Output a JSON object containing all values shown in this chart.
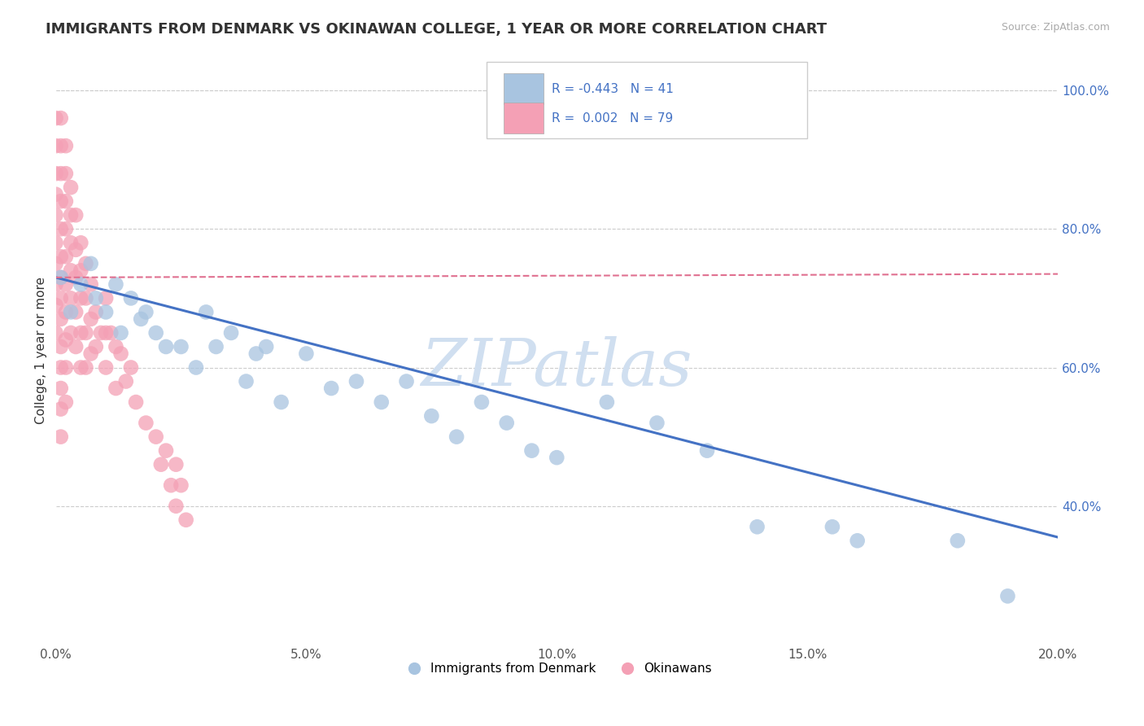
{
  "title": "IMMIGRANTS FROM DENMARK VS OKINAWAN COLLEGE, 1 YEAR OR MORE CORRELATION CHART",
  "source_text": "Source: ZipAtlas.com",
  "ylabel": "College, 1 year or more",
  "xlim": [
    0.0,
    0.2
  ],
  "ylim": [
    0.2,
    1.05
  ],
  "xticks": [
    0.0,
    0.05,
    0.1,
    0.15,
    0.2
  ],
  "xtick_labels": [
    "0.0%",
    "5.0%",
    "10.0%",
    "15.0%",
    "20.0%"
  ],
  "yticks": [
    0.4,
    0.6,
    0.8,
    1.0
  ],
  "ytick_labels": [
    "40.0%",
    "60.0%",
    "80.0%",
    "100.0%"
  ],
  "blue_color": "#a8c4e0",
  "pink_color": "#f4a0b5",
  "blue_line_color": "#4472c4",
  "pink_line_color": "#e07090",
  "watermark": "ZIPatlas",
  "watermark_color": "#d0dff0",
  "title_fontsize": 13,
  "axis_label_fontsize": 11,
  "tick_fontsize": 11,
  "blue_scatter_x": [
    0.001,
    0.003,
    0.005,
    0.007,
    0.008,
    0.01,
    0.012,
    0.013,
    0.015,
    0.017,
    0.018,
    0.02,
    0.022,
    0.025,
    0.028,
    0.03,
    0.032,
    0.035,
    0.038,
    0.04,
    0.042,
    0.045,
    0.05,
    0.055,
    0.06,
    0.065,
    0.07,
    0.075,
    0.08,
    0.085,
    0.09,
    0.095,
    0.1,
    0.11,
    0.12,
    0.13,
    0.14,
    0.155,
    0.16,
    0.18,
    0.19
  ],
  "blue_scatter_y": [
    0.73,
    0.68,
    0.72,
    0.75,
    0.7,
    0.68,
    0.72,
    0.65,
    0.7,
    0.67,
    0.68,
    0.65,
    0.63,
    0.63,
    0.6,
    0.68,
    0.63,
    0.65,
    0.58,
    0.62,
    0.63,
    0.55,
    0.62,
    0.57,
    0.58,
    0.55,
    0.58,
    0.53,
    0.5,
    0.55,
    0.52,
    0.48,
    0.47,
    0.55,
    0.52,
    0.48,
    0.37,
    0.37,
    0.35,
    0.35,
    0.27
  ],
  "pink_scatter_x": [
    0.0,
    0.0,
    0.0,
    0.0,
    0.0,
    0.0,
    0.0,
    0.0,
    0.0,
    0.0,
    0.001,
    0.001,
    0.001,
    0.001,
    0.001,
    0.001,
    0.001,
    0.001,
    0.001,
    0.001,
    0.001,
    0.001,
    0.001,
    0.001,
    0.002,
    0.002,
    0.002,
    0.002,
    0.002,
    0.002,
    0.002,
    0.002,
    0.002,
    0.002,
    0.003,
    0.003,
    0.003,
    0.003,
    0.003,
    0.003,
    0.004,
    0.004,
    0.004,
    0.004,
    0.004,
    0.005,
    0.005,
    0.005,
    0.005,
    0.005,
    0.006,
    0.006,
    0.006,
    0.006,
    0.007,
    0.007,
    0.007,
    0.008,
    0.008,
    0.009,
    0.01,
    0.01,
    0.01,
    0.011,
    0.012,
    0.012,
    0.013,
    0.014,
    0.015,
    0.016,
    0.018,
    0.02,
    0.021,
    0.022,
    0.023,
    0.024,
    0.024,
    0.025,
    0.026
  ],
  "pink_scatter_y": [
    0.96,
    0.92,
    0.88,
    0.85,
    0.82,
    0.78,
    0.75,
    0.72,
    0.69,
    0.65,
    0.96,
    0.92,
    0.88,
    0.84,
    0.8,
    0.76,
    0.73,
    0.7,
    0.67,
    0.63,
    0.6,
    0.57,
    0.54,
    0.5,
    0.92,
    0.88,
    0.84,
    0.8,
    0.76,
    0.72,
    0.68,
    0.64,
    0.6,
    0.55,
    0.86,
    0.82,
    0.78,
    0.74,
    0.7,
    0.65,
    0.82,
    0.77,
    0.73,
    0.68,
    0.63,
    0.78,
    0.74,
    0.7,
    0.65,
    0.6,
    0.75,
    0.7,
    0.65,
    0.6,
    0.72,
    0.67,
    0.62,
    0.68,
    0.63,
    0.65,
    0.7,
    0.65,
    0.6,
    0.65,
    0.63,
    0.57,
    0.62,
    0.58,
    0.6,
    0.55,
    0.52,
    0.5,
    0.46,
    0.48,
    0.43,
    0.46,
    0.4,
    0.43,
    0.38
  ],
  "blue_trend_x": [
    0.0,
    0.2
  ],
  "blue_trend_y": [
    0.73,
    0.355
  ],
  "pink_trend_x": [
    0.0,
    0.2
  ],
  "pink_trend_y": [
    0.73,
    0.735
  ]
}
